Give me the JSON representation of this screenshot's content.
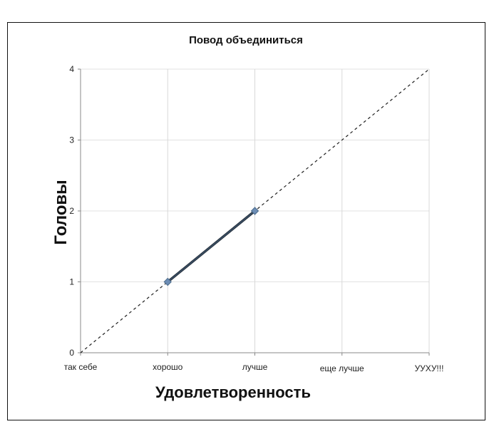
{
  "chart_data": {
    "type": "line",
    "title": "Повод объединиться",
    "xlabel": "Удовлетворенность",
    "ylabel": "Головы",
    "categories": [
      "так себе",
      "хорошо",
      "лучше",
      "еще лучше",
      "УУХУ!!!"
    ],
    "ylim": [
      0,
      4
    ],
    "yticks": [
      0,
      1,
      2,
      3,
      4
    ],
    "grid": true,
    "legend": "none",
    "series": [
      {
        "x": [
          "хорошо",
          "лучше"
        ],
        "values": [
          1,
          2
        ],
        "style": "solid",
        "marker": "diamond",
        "color": "#4a6a8a"
      }
    ],
    "trendline": {
      "x": [
        "так себе",
        "УУХУ!!!"
      ],
      "values": [
        0,
        4
      ],
      "style": "dashed",
      "color": "#222222"
    }
  }
}
